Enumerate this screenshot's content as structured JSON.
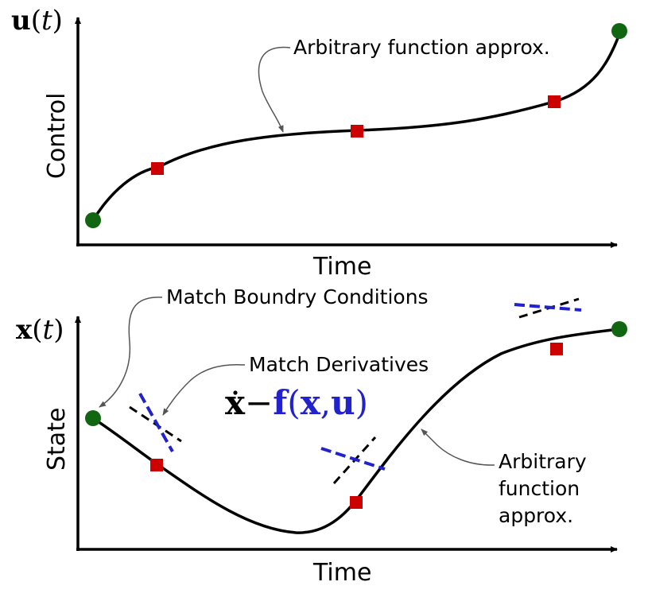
{
  "top_panel": {
    "y_symbol_main": "u",
    "y_symbol_paren_open": "(",
    "y_symbol_var": "t",
    "y_symbol_paren_close": ")",
    "y_label": "Control",
    "x_label": "Time",
    "annotation": "Arbitrary function approx."
  },
  "bottom_panel": {
    "y_symbol_main": "x",
    "y_symbol_paren_open": "(",
    "y_symbol_var": "t",
    "y_symbol_paren_close": ")",
    "y_label": "State",
    "x_label": "Time",
    "annotation_boundary": "Match Boundry Conditions",
    "annotation_derivatives": "Match Derivatives",
    "annotation_approx_lines": [
      "Arbitrary",
      "function",
      "approx."
    ],
    "equation": {
      "xdot": "x",
      "minus": "−",
      "f": "f",
      "args_open": "(",
      "x": "x",
      "comma": ",",
      "u": "u",
      "args_close": ")"
    }
  },
  "colors": {
    "boundary_point": "#116611",
    "collocation_point": "#cc0000",
    "derivative_line": "#2222cc",
    "curve": "#000000"
  }
}
